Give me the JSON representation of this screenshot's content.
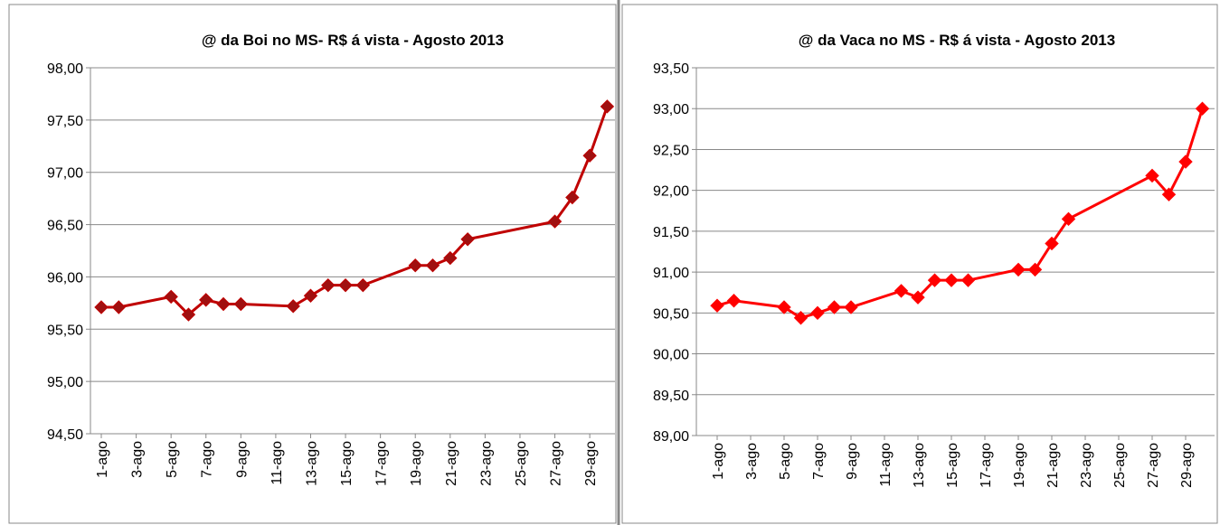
{
  "chart_data": [
    {
      "type": "line",
      "title": "@ da Boi no MS- R$ á vista - Agosto 2013",
      "color": "#c00000",
      "marker_color": "#a01010",
      "x": [
        "1-ago",
        "2-ago",
        "5-ago",
        "6-ago",
        "7-ago",
        "8-ago",
        "9-ago",
        "12-ago",
        "13-ago",
        "14-ago",
        "15-ago",
        "16-ago",
        "19-ago",
        "20-ago",
        "21-ago",
        "22-ago",
        "27-ago",
        "28-ago",
        "29-ago",
        "30-ago"
      ],
      "values": [
        95.71,
        95.71,
        95.81,
        95.64,
        95.78,
        95.74,
        95.74,
        95.72,
        95.82,
        95.92,
        95.92,
        95.92,
        96.11,
        96.11,
        96.18,
        96.36,
        96.53,
        96.76,
        97.16,
        97.63
      ],
      "xticks": [
        "1-ago",
        "3-ago",
        "5-ago",
        "7-ago",
        "9-ago",
        "11-ago",
        "13-ago",
        "15-ago",
        "17-ago",
        "19-ago",
        "21-ago",
        "23-ago",
        "25-ago",
        "27-ago",
        "29-ago"
      ],
      "ylim": [
        94.5,
        98
      ],
      "yticks": [
        {
          "value": 94.5,
          "label": "94,50"
        },
        {
          "value": 95,
          "label": "95,00"
        },
        {
          "value": 95.5,
          "label": "95,50"
        },
        {
          "value": 96,
          "label": "96,00"
        },
        {
          "value": 96.5,
          "label": "96,50"
        },
        {
          "value": 97,
          "label": "97,00"
        },
        {
          "value": 97.5,
          "label": "97,50"
        },
        {
          "value": 98,
          "label": "98,00"
        }
      ],
      "grid": true
    },
    {
      "type": "line",
      "title": "@ da Vaca no MS - R$ á vista - Agosto 2013",
      "color": "#ff0000",
      "marker_color": "#ff0000",
      "x": [
        "1-ago",
        "2-ago",
        "5-ago",
        "6-ago",
        "7-ago",
        "8-ago",
        "9-ago",
        "12-ago",
        "13-ago",
        "14-ago",
        "15-ago",
        "16-ago",
        "19-ago",
        "20-ago",
        "21-ago",
        "22-ago",
        "27-ago",
        "28-ago",
        "29-ago",
        "30-ago"
      ],
      "values": [
        90.59,
        90.65,
        90.57,
        90.44,
        90.5,
        90.57,
        90.57,
        90.77,
        90.69,
        90.9,
        90.9,
        90.9,
        91.03,
        91.03,
        91.35,
        91.65,
        92.18,
        91.95,
        92.35,
        93.0
      ],
      "xticks": [
        "1-ago",
        "3-ago",
        "5-ago",
        "7-ago",
        "9-ago",
        "11-ago",
        "13-ago",
        "15-ago",
        "17-ago",
        "19-ago",
        "21-ago",
        "23-ago",
        "25-ago",
        "27-ago",
        "29-ago"
      ],
      "ylim": [
        89,
        93.5
      ],
      "yticks": [
        {
          "value": 89,
          "label": "89,00"
        },
        {
          "value": 89.5,
          "label": "89,50"
        },
        {
          "value": 90,
          "label": "90,00"
        },
        {
          "value": 90.5,
          "label": "90,50"
        },
        {
          "value": 91,
          "label": "91,00"
        },
        {
          "value": 91.5,
          "label": "91,50"
        },
        {
          "value": 92,
          "label": "92,00"
        },
        {
          "value": 92.5,
          "label": "92,50"
        },
        {
          "value": 93,
          "label": "93,00"
        },
        {
          "value": 93.5,
          "label": "93,50"
        }
      ],
      "grid": true
    }
  ]
}
